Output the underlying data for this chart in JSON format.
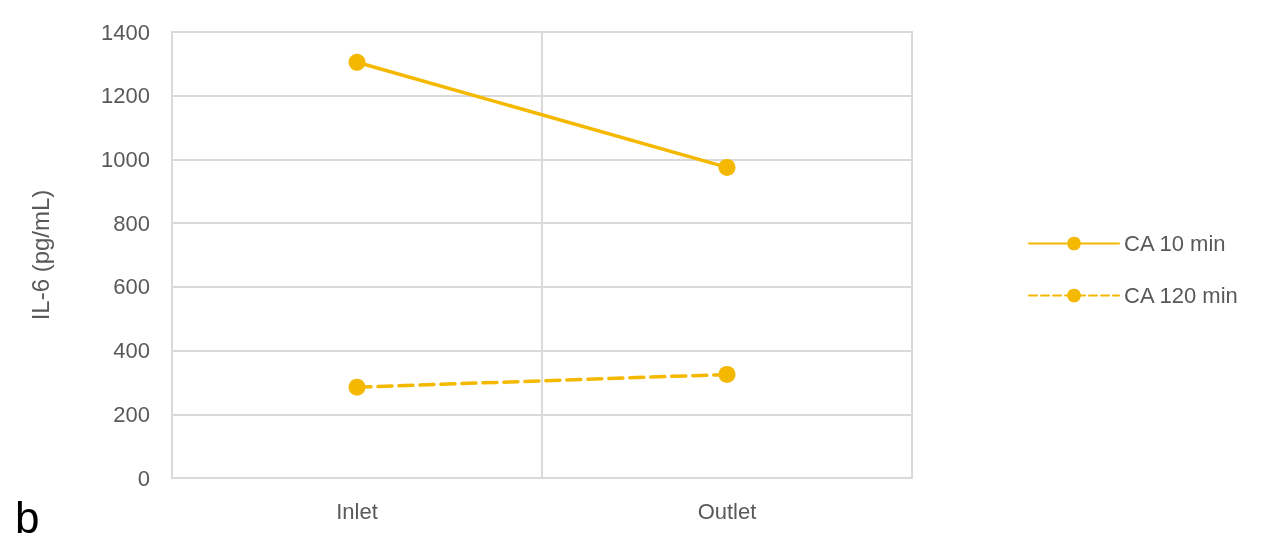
{
  "chart_data": {
    "type": "line",
    "ylabel": "IL-6 (pg/mL)",
    "categories": [
      "Inlet",
      "Outlet"
    ],
    "series": [
      {
        "name": "CA 10 min",
        "color": "#f5b800",
        "values": [
          1305,
          975
        ],
        "line_style": "solid"
      },
      {
        "name": "CA 120 min",
        "color": "#f5b800",
        "values": [
          285,
          325
        ],
        "line_style": "dashed"
      }
    ],
    "ylim": [
      0,
      1400
    ],
    "yticks": [
      0,
      200,
      400,
      600,
      800,
      1000,
      1200,
      1400
    ],
    "grid": true,
    "legend": "right",
    "marker": "circle",
    "annotations": [
      "b"
    ]
  }
}
